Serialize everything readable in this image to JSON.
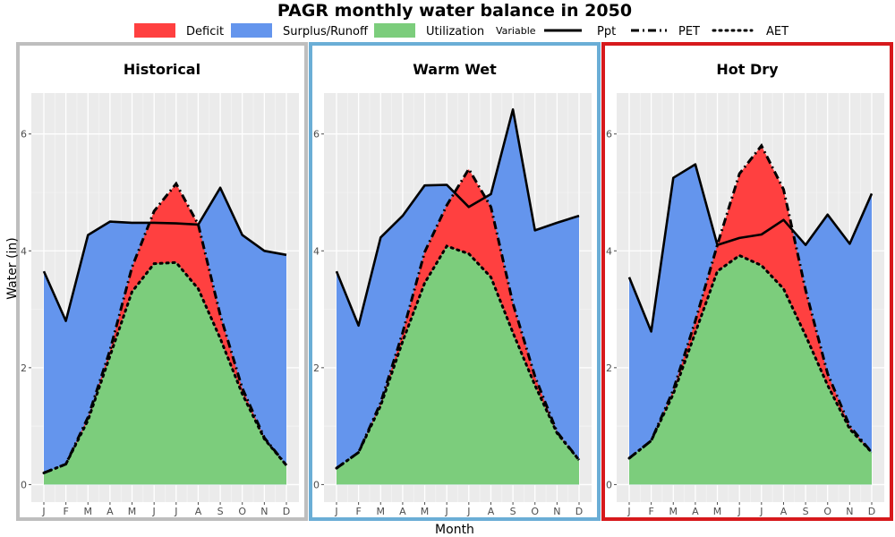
{
  "title": "PAGR monthly water balance in 2050",
  "legend": {
    "fill_items": [
      {
        "label": "Deficit",
        "color": "#ff4040"
      },
      {
        "label": "Surplus/Runoff",
        "color": "#6495ed"
      },
      {
        "label": "Utilization",
        "color": "#7ccd7c"
      }
    ],
    "line_title": "Variable",
    "line_items": [
      {
        "label": "Ppt",
        "dash": "solid"
      },
      {
        "label": "PET",
        "dash": "dashdot"
      },
      {
        "label": "AET",
        "dash": "dotted"
      }
    ]
  },
  "chart_data": [
    {
      "type": "area",
      "title": "Historical",
      "border_color": "#bebebe",
      "xlabel": "Month",
      "ylabel": "Water (in)",
      "categories": [
        "J",
        "F",
        "M",
        "A",
        "M",
        "J",
        "J",
        "A",
        "S",
        "O",
        "N",
        "D"
      ],
      "ylim": [
        -0.3,
        6.7
      ],
      "yticks": [
        0,
        2,
        4,
        6
      ],
      "grid": true,
      "series": [
        {
          "name": "Ppt",
          "values": [
            3.65,
            2.8,
            4.27,
            4.5,
            4.48,
            4.48,
            4.47,
            4.45,
            5.08,
            4.27,
            4.0,
            3.93
          ]
        },
        {
          "name": "PET",
          "values": [
            0.2,
            0.35,
            1.15,
            2.3,
            3.72,
            4.68,
            5.15,
            4.45,
            2.9,
            1.65,
            0.8,
            0.33
          ]
        },
        {
          "name": "AET",
          "values": [
            0.2,
            0.35,
            1.1,
            2.2,
            3.3,
            3.78,
            3.8,
            3.35,
            2.5,
            1.55,
            0.78,
            0.33
          ]
        }
      ]
    },
    {
      "type": "area",
      "title": "Warm Wet",
      "border_color": "#6baed6",
      "xlabel": "Month",
      "ylabel": "Water (in)",
      "categories": [
        "J",
        "F",
        "M",
        "A",
        "M",
        "J",
        "J",
        "A",
        "S",
        "O",
        "N",
        "D"
      ],
      "ylim": [
        -0.3,
        6.7
      ],
      "yticks": [
        0,
        2,
        4,
        6
      ],
      "grid": true,
      "series": [
        {
          "name": "Ppt",
          "values": [
            3.65,
            2.72,
            4.23,
            4.6,
            5.12,
            5.13,
            4.75,
            4.97,
            6.42,
            4.35,
            4.48,
            4.6
          ]
        },
        {
          "name": "PET",
          "values": [
            0.28,
            0.55,
            1.4,
            2.6,
            3.98,
            4.78,
            5.4,
            4.75,
            3.1,
            1.85,
            0.9,
            0.42
          ]
        },
        {
          "name": "AET",
          "values": [
            0.28,
            0.55,
            1.35,
            2.45,
            3.45,
            4.08,
            3.95,
            3.55,
            2.6,
            1.7,
            0.88,
            0.42
          ]
        }
      ]
    },
    {
      "type": "area",
      "title": "Hot Dry",
      "border_color": "#d7191c",
      "xlabel": "Month",
      "ylabel": "Water (in)",
      "categories": [
        "J",
        "F",
        "M",
        "A",
        "M",
        "J",
        "J",
        "A",
        "S",
        "O",
        "N",
        "D"
      ],
      "ylim": [
        -0.3,
        6.7
      ],
      "yticks": [
        0,
        2,
        4,
        6
      ],
      "grid": true,
      "series": [
        {
          "name": "Ppt",
          "values": [
            3.55,
            2.62,
            5.25,
            5.48,
            4.1,
            4.22,
            4.28,
            4.53,
            4.1,
            4.62,
            4.12,
            4.98
          ]
        },
        {
          "name": "PET",
          "values": [
            0.45,
            0.75,
            1.62,
            2.8,
            4.1,
            5.32,
            5.8,
            5.05,
            3.33,
            1.9,
            1.0,
            0.55
          ]
        },
        {
          "name": "AET",
          "values": [
            0.45,
            0.75,
            1.55,
            2.6,
            3.65,
            3.92,
            3.75,
            3.35,
            2.55,
            1.7,
            0.95,
            0.55
          ]
        }
      ]
    }
  ]
}
